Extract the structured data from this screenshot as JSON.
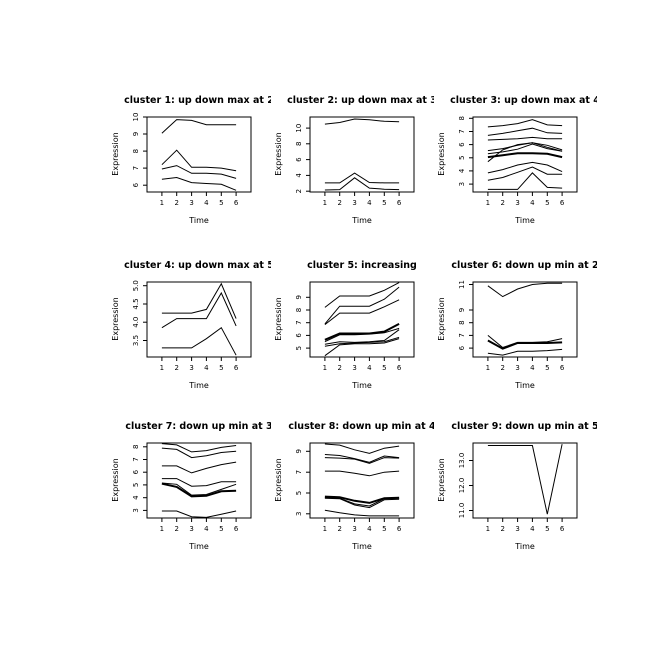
{
  "figure": {
    "background_color": "#ffffff",
    "line_color": "#000000",
    "description": "3x3 grid of cluster expression profile line plots"
  },
  "chart_data": {
    "type": "line",
    "layout": {
      "rows": 3,
      "cols": 3
    },
    "x": [
      1,
      2,
      3,
      4,
      5,
      6
    ],
    "xlim": [
      1,
      6
    ],
    "grid": false,
    "legend": "none",
    "panels": [
      {
        "title": "cluster 1: up down max at 2",
        "xlabel": "Time",
        "ylabel": "Expression",
        "ylim": [
          5.6,
          10.0
        ],
        "yticks": [
          {
            "v": 6,
            "label": "6"
          },
          {
            "v": 7,
            "label": "7"
          },
          {
            "v": 8,
            "label": "8"
          },
          {
            "v": 9,
            "label": "9"
          },
          {
            "v": 10,
            "label": "10"
          }
        ],
        "series": [
          {
            "values": [
              9.05,
              9.85,
              9.8,
              9.55,
              9.55,
              9.55
            ]
          },
          {
            "values": [
              7.2,
              8.05,
              7.05,
              7.05,
              7.0,
              6.85
            ]
          },
          {
            "values": [
              6.95,
              7.15,
              6.7,
              6.7,
              6.65,
              6.4
            ]
          },
          {
            "values": [
              6.35,
              6.45,
              6.15,
              6.1,
              6.05,
              5.7
            ]
          }
        ]
      },
      {
        "title": "cluster 2: up down max at 3",
        "xlabel": "Time",
        "ylabel": "Expression",
        "ylim": [
          1.9,
          11.4
        ],
        "yticks": [
          {
            "v": 2,
            "label": "2"
          },
          {
            "v": 4,
            "label": "4"
          },
          {
            "v": 6,
            "label": "6"
          },
          {
            "v": 8,
            "label": "8"
          },
          {
            "v": 10,
            "label": "10"
          }
        ],
        "series": [
          {
            "values": [
              10.5,
              10.7,
              11.15,
              11.05,
              10.85,
              10.8
            ]
          },
          {
            "values": [
              3.05,
              3.05,
              4.3,
              3.1,
              3.05,
              3.05
            ]
          },
          {
            "values": [
              2.15,
              2.2,
              3.7,
              2.4,
              2.25,
              2.2
            ]
          }
        ]
      },
      {
        "title": "cluster 3: up down max at 4",
        "xlabel": "Time",
        "ylabel": "Expression",
        "ylim": [
          2.4,
          8.1
        ],
        "yticks": [
          {
            "v": 3,
            "label": "3"
          },
          {
            "v": 4,
            "label": "4"
          },
          {
            "v": 5,
            "label": "5"
          },
          {
            "v": 6,
            "label": "6"
          },
          {
            "v": 7,
            "label": "7"
          },
          {
            "v": 8,
            "label": "8"
          }
        ],
        "series": [
          {
            "values": [
              7.35,
              7.45,
              7.6,
              7.9,
              7.5,
              7.45
            ]
          },
          {
            "values": [
              6.7,
              6.85,
              7.05,
              7.25,
              6.9,
              6.85
            ]
          },
          {
            "values": [
              6.35,
              6.4,
              6.45,
              6.55,
              6.45,
              6.45
            ]
          },
          {
            "values": [
              5.55,
              5.7,
              5.95,
              6.15,
              5.95,
              5.6
            ]
          },
          {
            "values": [
              5.3,
              5.45,
              5.65,
              6.05,
              5.7,
              5.5
            ]
          },
          {
            "values": [
              4.7,
              5.6,
              6.0,
              6.15,
              5.8,
              5.5
            ]
          },
          {
            "lw": 2,
            "values": [
              5.05,
              5.2,
              5.35,
              5.35,
              5.3,
              5.05
            ]
          },
          {
            "values": [
              3.85,
              4.1,
              4.45,
              4.65,
              4.45,
              3.95
            ]
          },
          {
            "values": [
              3.3,
              3.5,
              3.9,
              4.3,
              3.75,
              3.75
            ]
          },
          {
            "values": [
              2.6,
              2.6,
              2.6,
              3.85,
              2.75,
              2.7
            ]
          }
        ]
      },
      {
        "title": "cluster 4: up down max at 5",
        "xlabel": "Time",
        "ylabel": "Expression",
        "ylim": [
          3.05,
          5.1
        ],
        "yticks": [
          {
            "v": 3.5,
            "label": "3.5"
          },
          {
            "v": 4.0,
            "label": "4.0"
          },
          {
            "v": 4.5,
            "label": "4.5"
          },
          {
            "v": 5.0,
            "label": "5.0"
          }
        ],
        "series": [
          {
            "values": [
              4.25,
              4.25,
              4.25,
              4.35,
              5.05,
              4.1
            ]
          },
          {
            "values": [
              3.85,
              4.1,
              4.1,
              4.1,
              4.8,
              3.9
            ]
          },
          {
            "values": [
              3.3,
              3.3,
              3.3,
              3.55,
              3.85,
              3.1
            ]
          }
        ]
      },
      {
        "title": "cluster 5: increasing",
        "xlabel": "Time",
        "ylabel": "Expression",
        "ylim": [
          4.3,
          10.2
        ],
        "yticks": [
          {
            "v": 5,
            "label": "5"
          },
          {
            "v": 6,
            "label": "6"
          },
          {
            "v": 7,
            "label": "7"
          },
          {
            "v": 8,
            "label": "8"
          },
          {
            "v": 9,
            "label": "9"
          }
        ],
        "series": [
          {
            "values": [
              8.2,
              9.1,
              9.1,
              9.1,
              9.55,
              10.15
            ]
          },
          {
            "values": [
              6.9,
              8.3,
              8.3,
              8.3,
              8.85,
              9.8
            ]
          },
          {
            "values": [
              6.85,
              7.75,
              7.75,
              7.75,
              8.25,
              8.8
            ]
          },
          {
            "lw": 2,
            "values": [
              5.65,
              6.15,
              6.15,
              6.15,
              6.3,
              6.9
            ]
          },
          {
            "values": [
              5.5,
              6.05,
              6.05,
              6.1,
              6.2,
              6.55
            ]
          },
          {
            "values": [
              5.3,
              5.5,
              5.45,
              5.5,
              5.6,
              6.45
            ]
          },
          {
            "values": [
              5.15,
              5.35,
              5.4,
              5.45,
              5.5,
              5.85
            ]
          },
          {
            "values": [
              4.4,
              5.25,
              5.35,
              5.35,
              5.4,
              5.75
            ]
          }
        ]
      },
      {
        "title": "cluster 6: down up min at 2",
        "xlabel": "Time",
        "ylabel": "Expression",
        "ylim": [
          5.3,
          11.2
        ],
        "yticks": [
          {
            "v": 6,
            "label": "6"
          },
          {
            "v": 7,
            "label": "7"
          },
          {
            "v": 8,
            "label": "8"
          },
          {
            "v": 9,
            "label": "9"
          },
          {
            "v": 11,
            "label": "11"
          }
        ],
        "series": [
          {
            "values": [
              10.9,
              10.05,
              10.65,
              11.0,
              11.1,
              11.1
            ]
          },
          {
            "values": [
              7.0,
              6.05,
              6.45,
              6.45,
              6.5,
              6.75
            ]
          },
          {
            "lw": 2,
            "values": [
              6.6,
              5.95,
              6.4,
              6.4,
              6.4,
              6.45
            ]
          },
          {
            "values": [
              5.6,
              5.45,
              5.75,
              5.75,
              5.8,
              5.9
            ]
          }
        ]
      },
      {
        "title": "cluster 7: down up min at 3",
        "xlabel": "Time",
        "ylabel": "Expression",
        "ylim": [
          2.4,
          8.3
        ],
        "yticks": [
          {
            "v": 3,
            "label": "3"
          },
          {
            "v": 4,
            "label": "4"
          },
          {
            "v": 5,
            "label": "5"
          },
          {
            "v": 6,
            "label": "6"
          },
          {
            "v": 7,
            "label": "7"
          },
          {
            "v": 8,
            "label": "8"
          }
        ],
        "series": [
          {
            "values": [
              8.25,
              8.15,
              7.6,
              7.7,
              7.95,
              8.1
            ]
          },
          {
            "values": [
              7.9,
              7.8,
              7.15,
              7.3,
              7.55,
              7.65
            ]
          },
          {
            "values": [
              6.5,
              6.5,
              5.95,
              6.3,
              6.6,
              6.8
            ]
          },
          {
            "values": [
              5.5,
              5.5,
              4.9,
              4.95,
              5.25,
              5.25
            ]
          },
          {
            "values": [
              5.15,
              5.05,
              4.2,
              4.25,
              4.65,
              5.05
            ]
          },
          {
            "lw": 2,
            "values": [
              5.1,
              4.85,
              4.1,
              4.15,
              4.5,
              4.55
            ]
          },
          {
            "values": [
              2.95,
              2.95,
              2.5,
              2.45,
              2.7,
              2.95
            ]
          }
        ]
      },
      {
        "title": "cluster 8: down up min at 4",
        "xlabel": "Time",
        "ylabel": "Expression",
        "ylim": [
          2.6,
          9.8
        ],
        "yticks": [
          {
            "v": 3,
            "label": "3"
          },
          {
            "v": 5,
            "label": "5"
          },
          {
            "v": 7,
            "label": "7"
          },
          {
            "v": 9,
            "label": "9"
          }
        ],
        "series": [
          {
            "values": [
              9.7,
              9.6,
              9.15,
              8.8,
              9.3,
              9.5
            ]
          },
          {
            "values": [
              8.7,
              8.6,
              8.3,
              7.95,
              8.55,
              8.4
            ]
          },
          {
            "values": [
              8.4,
              8.35,
              8.25,
              7.85,
              8.4,
              8.35
            ]
          },
          {
            "values": [
              7.1,
              7.1,
              6.9,
              6.65,
              7.0,
              7.1
            ]
          },
          {
            "lw": 2,
            "values": [
              4.65,
              4.6,
              4.25,
              4.05,
              4.5,
              4.55
            ]
          },
          {
            "values": [
              4.55,
              4.5,
              3.95,
              3.75,
              4.45,
              4.5
            ]
          },
          {
            "values": [
              4.5,
              4.45,
              3.85,
              3.6,
              4.35,
              4.4
            ]
          },
          {
            "values": [
              3.35,
              3.1,
              2.9,
              2.8,
              2.8,
              2.8
            ]
          }
        ]
      },
      {
        "title": "cluster 9: down up min at 5",
        "xlabel": "Time",
        "ylabel": "Expression",
        "ylim": [
          10.7,
          13.7
        ],
        "yticks": [
          {
            "v": 11.0,
            "label": "11.0"
          },
          {
            "v": 12.0,
            "label": "12.0"
          },
          {
            "v": 13.0,
            "label": "13.0"
          }
        ],
        "series": [
          {
            "values": [
              13.6,
              13.6,
              13.6,
              13.6,
              10.85,
              13.65
            ]
          }
        ]
      }
    ]
  }
}
